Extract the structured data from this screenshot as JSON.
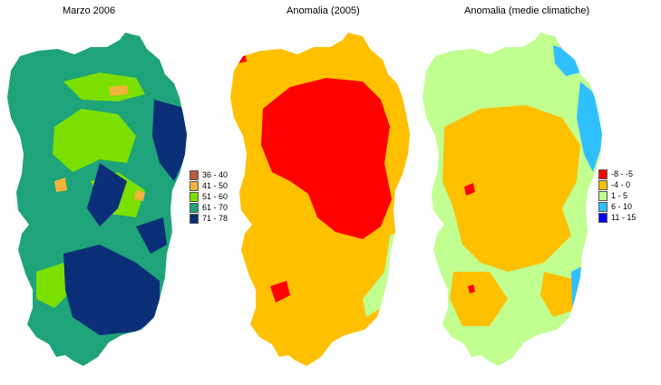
{
  "panels": [
    {
      "title": "Marzo 2006",
      "legend": [
        {
          "label": "36 - 40",
          "color": "#b85a40"
        },
        {
          "label": "41 - 50",
          "color": "#f2b43a"
        },
        {
          "label": "51 - 60",
          "color": "#7be000"
        },
        {
          "label": "61 - 70",
          "color": "#1fa37a"
        },
        {
          "label": "71 - 78",
          "color": "#0a2f78"
        }
      ]
    },
    {
      "title": "Anomalia (2005)",
      "legend": []
    },
    {
      "title": "Anomalia (medie climatiche)",
      "legend": [
        {
          "label": "-8 - -5",
          "color": "#ff0000"
        },
        {
          "label": "-4 - 0",
          "color": "#ffc000"
        },
        {
          "label": "1 - 5",
          "color": "#c0ff90"
        },
        {
          "label": "6 - 10",
          "color": "#30c0ff"
        },
        {
          "label": "11 - 15",
          "color": "#0000ff"
        }
      ]
    }
  ]
}
